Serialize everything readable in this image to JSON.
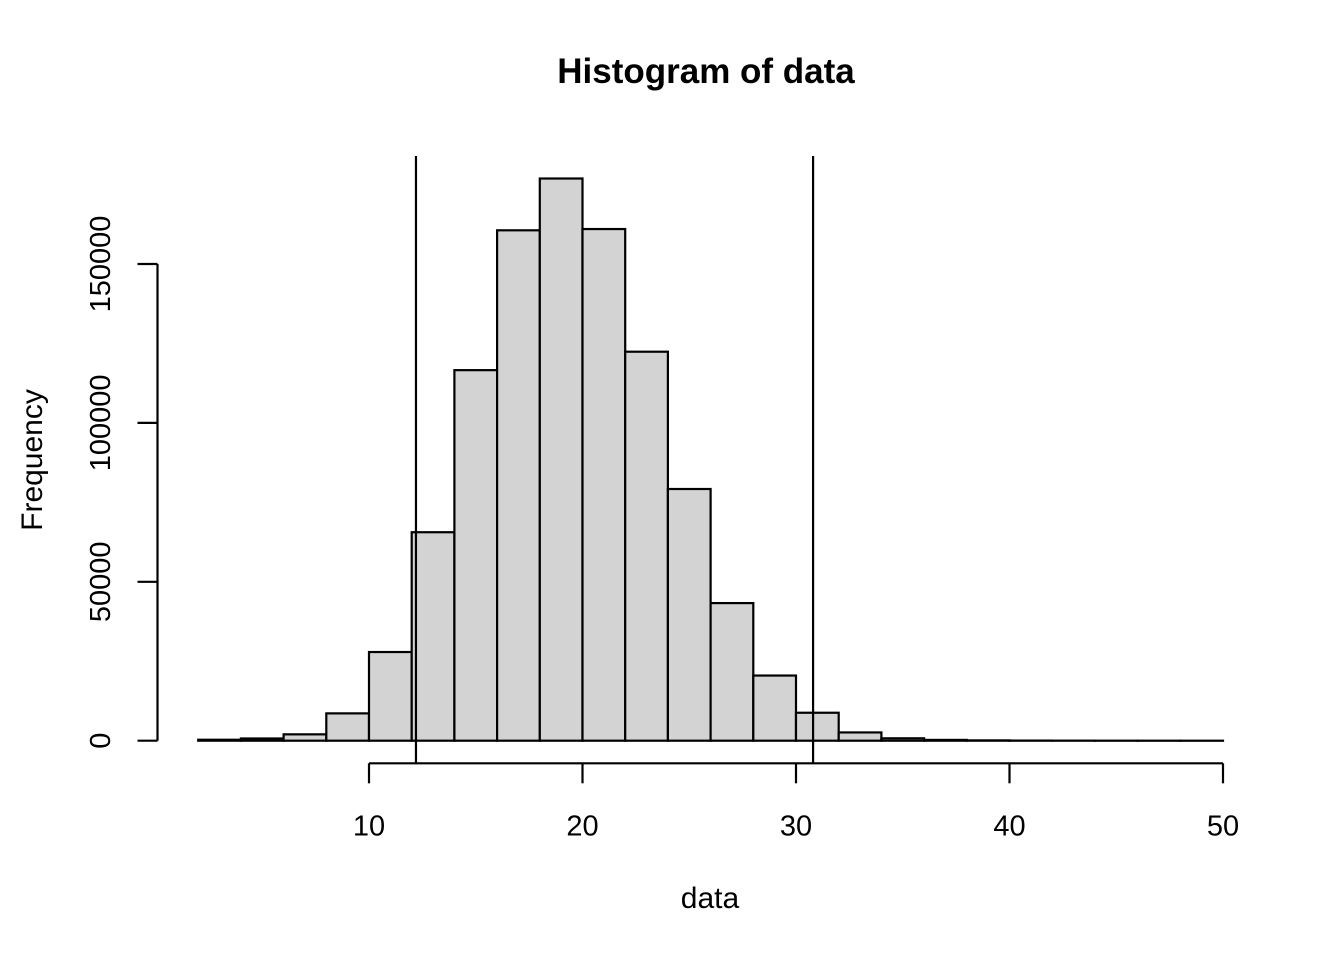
{
  "chart_data": {
    "type": "bar",
    "subtype": "histogram",
    "title": "Histogram of data",
    "xlabel": "data",
    "ylabel": "Frequency",
    "bin_edges": [
      2,
      4,
      6,
      8,
      10,
      12,
      14,
      16,
      18,
      20,
      22,
      24,
      26,
      28,
      30,
      32,
      34,
      36,
      38,
      40,
      42,
      44,
      46,
      48,
      50
    ],
    "counts": [
      300,
      700,
      2000,
      8600,
      27900,
      65600,
      116600,
      160600,
      176900,
      161000,
      122400,
      79200,
      43300,
      20500,
      8800,
      2600,
      750,
      250,
      100,
      40,
      15,
      6,
      2,
      1
    ],
    "x_ticks": [
      10,
      20,
      30,
      40,
      50
    ],
    "x_tick_labels": [
      "10",
      "20",
      "30",
      "40",
      "50"
    ],
    "y_ticks": [
      0,
      50000,
      100000,
      150000
    ],
    "y_tick_labels": [
      "0",
      "50000",
      "100000",
      "150000"
    ],
    "xlim": [
      2,
      50
    ],
    "ylim": [
      0,
      176900
    ],
    "vlines": [
      12.2,
      30.8
    ],
    "grid": false,
    "legend": false,
    "colors": {
      "bar_fill": "#d3d3d3",
      "bar_stroke": "#000000",
      "axis": "#000000",
      "text": "#000000",
      "background": "#ffffff"
    }
  }
}
